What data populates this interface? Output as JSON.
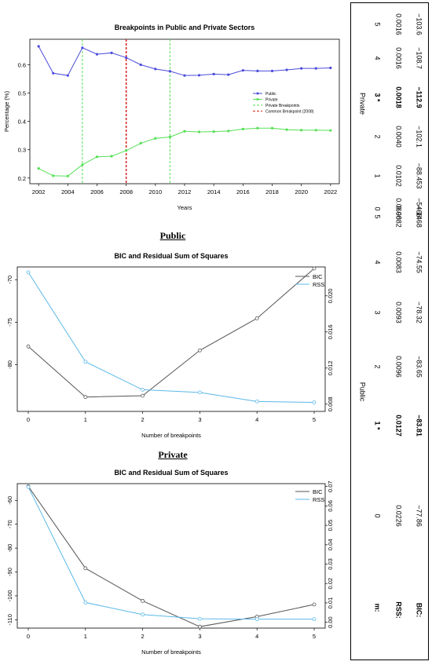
{
  "chart_data": [
    {
      "type": "line",
      "title": "Breakpoints in Public and Private Sectors",
      "xlabel": "Years",
      "ylabel": "Percentage (%)",
      "x": [
        2002,
        2003,
        2004,
        2005,
        2006,
        2007,
        2008,
        2009,
        2010,
        2011,
        2012,
        2013,
        2014,
        2015,
        2016,
        2017,
        2018,
        2019,
        2020,
        2021,
        2022
      ],
      "xticks": [
        "2002",
        "2004",
        "2006",
        "2008",
        "2010",
        "2012",
        "2014",
        "2016",
        "2018",
        "2020",
        "2022"
      ],
      "yticks": [
        "0.2",
        "0.3",
        "0.4",
        "0.5",
        "0.6"
      ],
      "ylim": [
        0.18,
        0.69
      ],
      "series": [
        {
          "name": "Public",
          "color": "#4b4bdc",
          "values": [
            0.665,
            0.57,
            0.562,
            0.66,
            0.637,
            0.642,
            0.625,
            0.6,
            0.585,
            0.577,
            0.562,
            0.563,
            0.567,
            0.565,
            0.58,
            0.578,
            0.578,
            0.582,
            0.587,
            0.587,
            0.589
          ]
        },
        {
          "name": "Private",
          "color": "#55e055",
          "values": [
            0.234,
            0.208,
            0.207,
            0.247,
            0.275,
            0.277,
            0.297,
            0.323,
            0.34,
            0.345,
            0.365,
            0.363,
            0.364,
            0.366,
            0.373,
            0.376,
            0.376,
            0.371,
            0.369,
            0.369,
            0.368
          ]
        }
      ],
      "vlines": [
        {
          "x": 2005,
          "legend": "Private Breakpoints",
          "color": "#55e055"
        },
        {
          "x": 2011,
          "legend": "Private Breakpoints",
          "color": "#55e055"
        },
        {
          "x": 2008,
          "legend": "Common Breakpoint (2008)",
          "color": "#d62020"
        }
      ],
      "legend_entries": [
        "Public",
        "Private",
        "Private Breakpoints",
        "Common Breakpoint (2008)"
      ],
      "legend": "right"
    },
    {
      "type": "line",
      "section_title": "Public",
      "title": "BIC and Residual Sum of Squares",
      "xlabel": "Number of breakpoints",
      "x": [
        0,
        1,
        2,
        3,
        4,
        5
      ],
      "y_left_ticks": [
        "-70",
        "-75",
        "-80"
      ],
      "y_right_ticks": [
        "0.008",
        "0.012",
        "0.016",
        "0.020"
      ],
      "ylim_left": [
        -85.5,
        -68.5
      ],
      "ylim_right": [
        0.0072,
        0.0232
      ],
      "series": [
        {
          "name": "BIC",
          "axis": "left",
          "color": "#555555",
          "values": [
            -77.86,
            -83.81,
            -83.65,
            -78.32,
            -74.55,
            -68.68
          ]
        },
        {
          "name": "RSS",
          "axis": "right",
          "color": "#5bb8e8",
          "values": [
            0.0226,
            0.0127,
            0.0096,
            0.0093,
            0.0083,
            0.0082
          ]
        }
      ],
      "legend": "top-right"
    },
    {
      "type": "line",
      "section_title": "Private",
      "title": "BIC and Residual Sum of Squares",
      "xlabel": "Number of breakpoints",
      "x": [
        0,
        1,
        2,
        3,
        4,
        5
      ],
      "y_left_ticks": [
        "-60",
        "-70",
        "-80",
        "-90",
        "-100",
        "-110"
      ],
      "y_right_ticks": [
        "0.00",
        "0.01",
        "0.02",
        "0.03",
        "0.04",
        "0.05",
        "0.06",
        "0.07"
      ],
      "ylim_left": [
        -113.5,
        -53
      ],
      "ylim_right": [
        -0.003,
        0.0715
      ],
      "series": [
        {
          "name": "BIC",
          "axis": "left",
          "color": "#555555",
          "values": [
            -54.14,
            -88.453,
            -102.1,
            -112.9,
            -108.7,
            -103.6
          ]
        },
        {
          "name": "RSS",
          "axis": "right",
          "color": "#5bb8e8",
          "values": [
            0.0698,
            0.0102,
            0.004,
            0.0018,
            0.0016,
            0.0016
          ]
        }
      ],
      "legend": "top-right"
    }
  ],
  "table": {
    "row_labels": {
      "m": "m:",
      "rss": "RSS:",
      "bic": "BIC:"
    },
    "public": {
      "label": "Public",
      "m": [
        "0",
        "1 *",
        "2",
        "3",
        "4",
        "5"
      ],
      "rss": [
        "0.0226",
        "0.0127",
        "0.0096",
        "0.0093",
        "0.0083",
        "0.0082"
      ],
      "bic": [
        "−77.86",
        "−83.81",
        "−83.65",
        "−78.32",
        "−74.55",
        "−68.68"
      ],
      "bold_index": 1
    },
    "private": {
      "label": "Private",
      "m": [
        "0",
        "1",
        "2",
        "3 *",
        "4",
        "5"
      ],
      "rss": [
        "0.0698",
        "0.0102",
        "0.0040",
        "0.0018",
        "0.0016",
        "0.0016"
      ],
      "bic": [
        "−54.14",
        "−88.453",
        "−102.1",
        "−112.9",
        "−108.7",
        "−103.6"
      ],
      "bold_index": 3
    }
  }
}
